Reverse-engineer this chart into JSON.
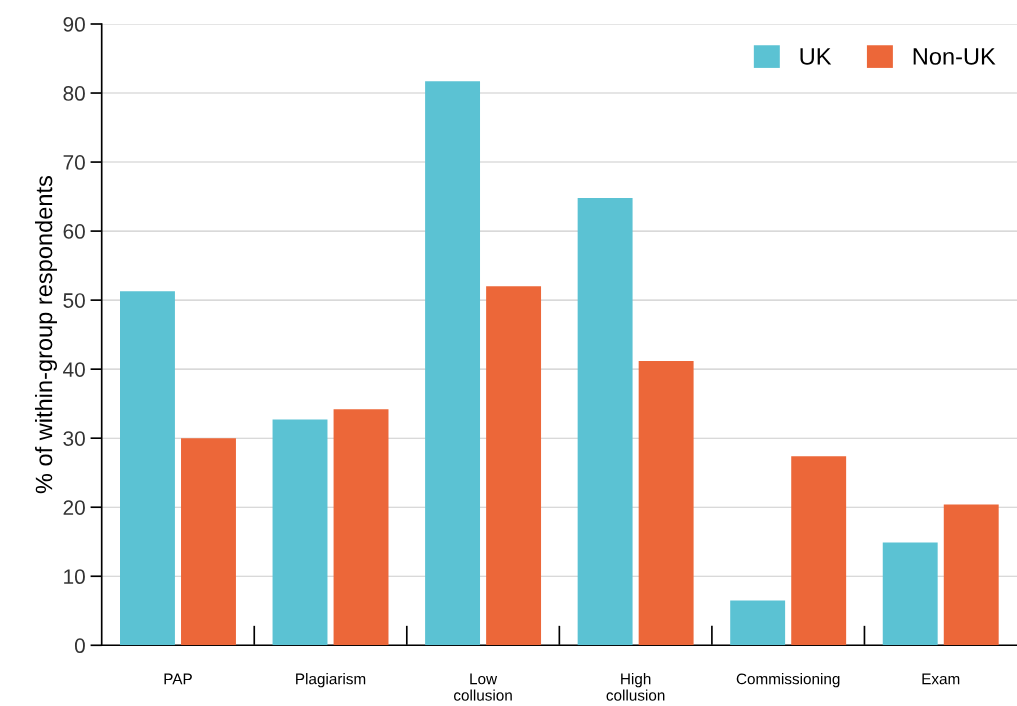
{
  "chart_data": {
    "type": "bar",
    "ylabel": "% of within-group respondents",
    "categories": [
      "PAP",
      "Plagiarism",
      "Low\ncollusion",
      "High\ncollusion",
      "Commissioning",
      "Exam"
    ],
    "series": [
      {
        "name": "UK",
        "color": "#5bc2d3",
        "values": [
          51.3,
          32.7,
          81.7,
          64.8,
          6.5,
          14.9
        ]
      },
      {
        "name": "Non-UK",
        "color": "#ec6739",
        "values": [
          30.0,
          34.2,
          52.0,
          41.2,
          27.4,
          20.4
        ]
      }
    ],
    "ylim": [
      0,
      90
    ],
    "yticks": [
      0,
      10,
      20,
      30,
      40,
      50,
      60,
      70,
      80,
      90
    ],
    "grid": "y",
    "legend": "top right"
  }
}
